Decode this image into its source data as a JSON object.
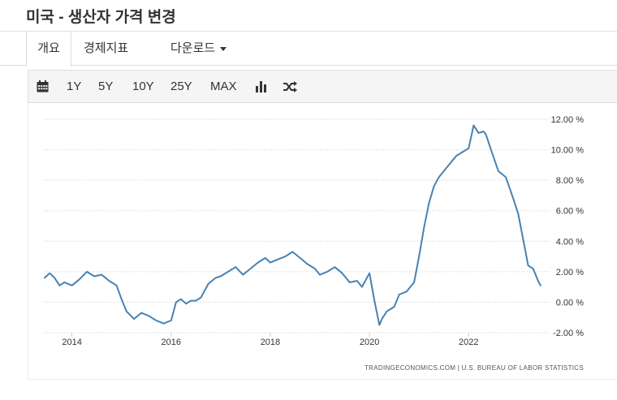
{
  "page": {
    "title": "미국 - 생산자 가격 변경"
  },
  "tabs": {
    "overview": "개요",
    "indicators": "경제지표",
    "download": "다운로드"
  },
  "toolbar": {
    "calendar_icon": "calendar-icon",
    "r1": "1Y",
    "r5": "5Y",
    "r10": "10Y",
    "r25": "25Y",
    "rmax": "MAX",
    "bar_icon": "bar-chart-icon",
    "shuffle_icon": "shuffle-icon"
  },
  "source": {
    "text": "TRADINGECONOMICS.COM  |  U.S. BUREAU OF LABOR STATISTICS"
  },
  "chart_data": {
    "type": "line",
    "title": "",
    "xlabel": "",
    "ylabel": "",
    "line_color": "#4682b4",
    "grid": "dotted horizontal",
    "y_axis_side": "right",
    "ylim": [
      -2,
      12
    ],
    "yticks": [
      "12.00 %",
      "10.00 %",
      "8.00 %",
      "6.00 %",
      "4.00 %",
      "2.00 %",
      "0.00 %",
      "-2.00 %"
    ],
    "ytick_values": [
      12,
      10,
      8,
      6,
      4,
      2,
      0,
      -2
    ],
    "xticks": [
      "2014",
      "2016",
      "2018",
      "2020",
      "2022"
    ],
    "xtick_values": [
      2014,
      2016,
      2018,
      2020,
      2022
    ],
    "xlim": [
      2013.45,
      2023.6
    ],
    "series": [
      {
        "x": [
          2013.45,
          2013.55,
          2013.65,
          2013.75,
          2013.85,
          2014.0,
          2014.15,
          2014.3,
          2014.45,
          2014.6,
          2014.75,
          2014.9,
          2015.0,
          2015.1,
          2015.25,
          2015.4,
          2015.55,
          2015.7,
          2015.85,
          2016.0,
          2016.1,
          2016.2,
          2016.3,
          2016.4,
          2016.5,
          2016.6,
          2016.75,
          2016.9,
          2017.0,
          2017.15,
          2017.3,
          2017.45,
          2017.6,
          2017.75,
          2017.9,
          2018.0,
          2018.15,
          2018.3,
          2018.45,
          2018.6,
          2018.75,
          2018.9,
          2019.0,
          2019.15,
          2019.3,
          2019.45,
          2019.6,
          2019.75,
          2019.85,
          2020.0,
          2020.1,
          2020.2,
          2020.25,
          2020.35,
          2020.5,
          2020.6,
          2020.75,
          2020.9,
          2021.0,
          2021.1,
          2021.2,
          2021.3,
          2021.4,
          2021.5,
          2021.6,
          2021.75,
          2021.9,
          2022.0,
          2022.1,
          2022.2,
          2022.3,
          2022.35,
          2022.45,
          2022.6,
          2022.75,
          2022.9,
          2023.0,
          2023.1,
          2023.2,
          2023.3,
          2023.4,
          2023.45
        ],
        "values": [
          1.6,
          1.9,
          1.6,
          1.1,
          1.3,
          1.1,
          1.5,
          2.0,
          1.7,
          1.8,
          1.4,
          1.1,
          0.2,
          -0.6,
          -1.1,
          -0.7,
          -0.9,
          -1.2,
          -1.4,
          -1.2,
          0.0,
          0.2,
          -0.1,
          0.1,
          0.1,
          0.3,
          1.2,
          1.6,
          1.7,
          2.0,
          2.3,
          1.8,
          2.2,
          2.6,
          2.9,
          2.6,
          2.8,
          3.0,
          3.3,
          2.9,
          2.5,
          2.2,
          1.8,
          2.0,
          2.3,
          1.9,
          1.3,
          1.4,
          1.0,
          1.9,
          0.1,
          -1.5,
          -1.1,
          -0.6,
          -0.3,
          0.5,
          0.7,
          1.3,
          3.0,
          4.9,
          6.5,
          7.6,
          8.2,
          8.6,
          9.0,
          9.6,
          9.9,
          10.1,
          11.6,
          11.1,
          11.2,
          11.0,
          10.0,
          8.6,
          8.2,
          6.8,
          5.8,
          4.1,
          2.4,
          2.2,
          1.4,
          1.1
        ]
      }
    ]
  }
}
